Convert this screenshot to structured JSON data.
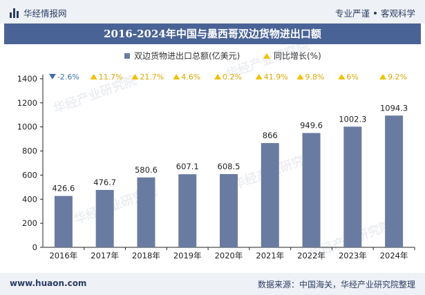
{
  "header": {
    "brand": "华经情报网",
    "brand_icon": "bar-logo-icon",
    "slogan_left": "专业严谨",
    "slogan_right": "客观科学"
  },
  "chart_data": {
    "type": "bar+line",
    "title": "2016-2024年中国与墨西哥双边货物进出口额",
    "categories": [
      "2016年",
      "2017年",
      "2018年",
      "2019年",
      "2020年",
      "2021年",
      "2022年",
      "2023年",
      "2024年"
    ],
    "series": [
      {
        "name": "双边货物进出口总额(亿美元)",
        "kind": "bar",
        "color": "#6a7ba2",
        "values": [
          426.6,
          476.7,
          580.6,
          607.1,
          608.5,
          866,
          949.6,
          1002.3,
          1094.3
        ],
        "labels": [
          "426.6",
          "476.7",
          "580.6",
          "607.1",
          "608.5",
          "866",
          "949.6",
          "1002.3",
          "1094.3"
        ]
      },
      {
        "name": "同比增长(%)",
        "kind": "marker",
        "color_up": "#f2c100",
        "color_down": "#3f6fa8",
        "values": [
          -2.6,
          11.7,
          21.7,
          4.6,
          0.2,
          41.9,
          9.8,
          6,
          9.2
        ],
        "labels": [
          "-2.6%",
          "11.7%",
          "21.7%",
          "4.6%",
          "0.2%",
          "41.9%",
          "9.8%",
          "6%",
          "9.2%"
        ]
      }
    ],
    "yticks": [
      "0",
      "200",
      "400",
      "600",
      "800",
      "1000",
      "1200",
      "1400"
    ],
    "ylim": [
      0,
      1400
    ],
    "legend_position": "top-center",
    "grid": false
  },
  "footer": {
    "site": "www.huaon.com",
    "source": "数据来源：中国海关，华经产业研究院整理"
  },
  "watermark": "华经产业研究院"
}
